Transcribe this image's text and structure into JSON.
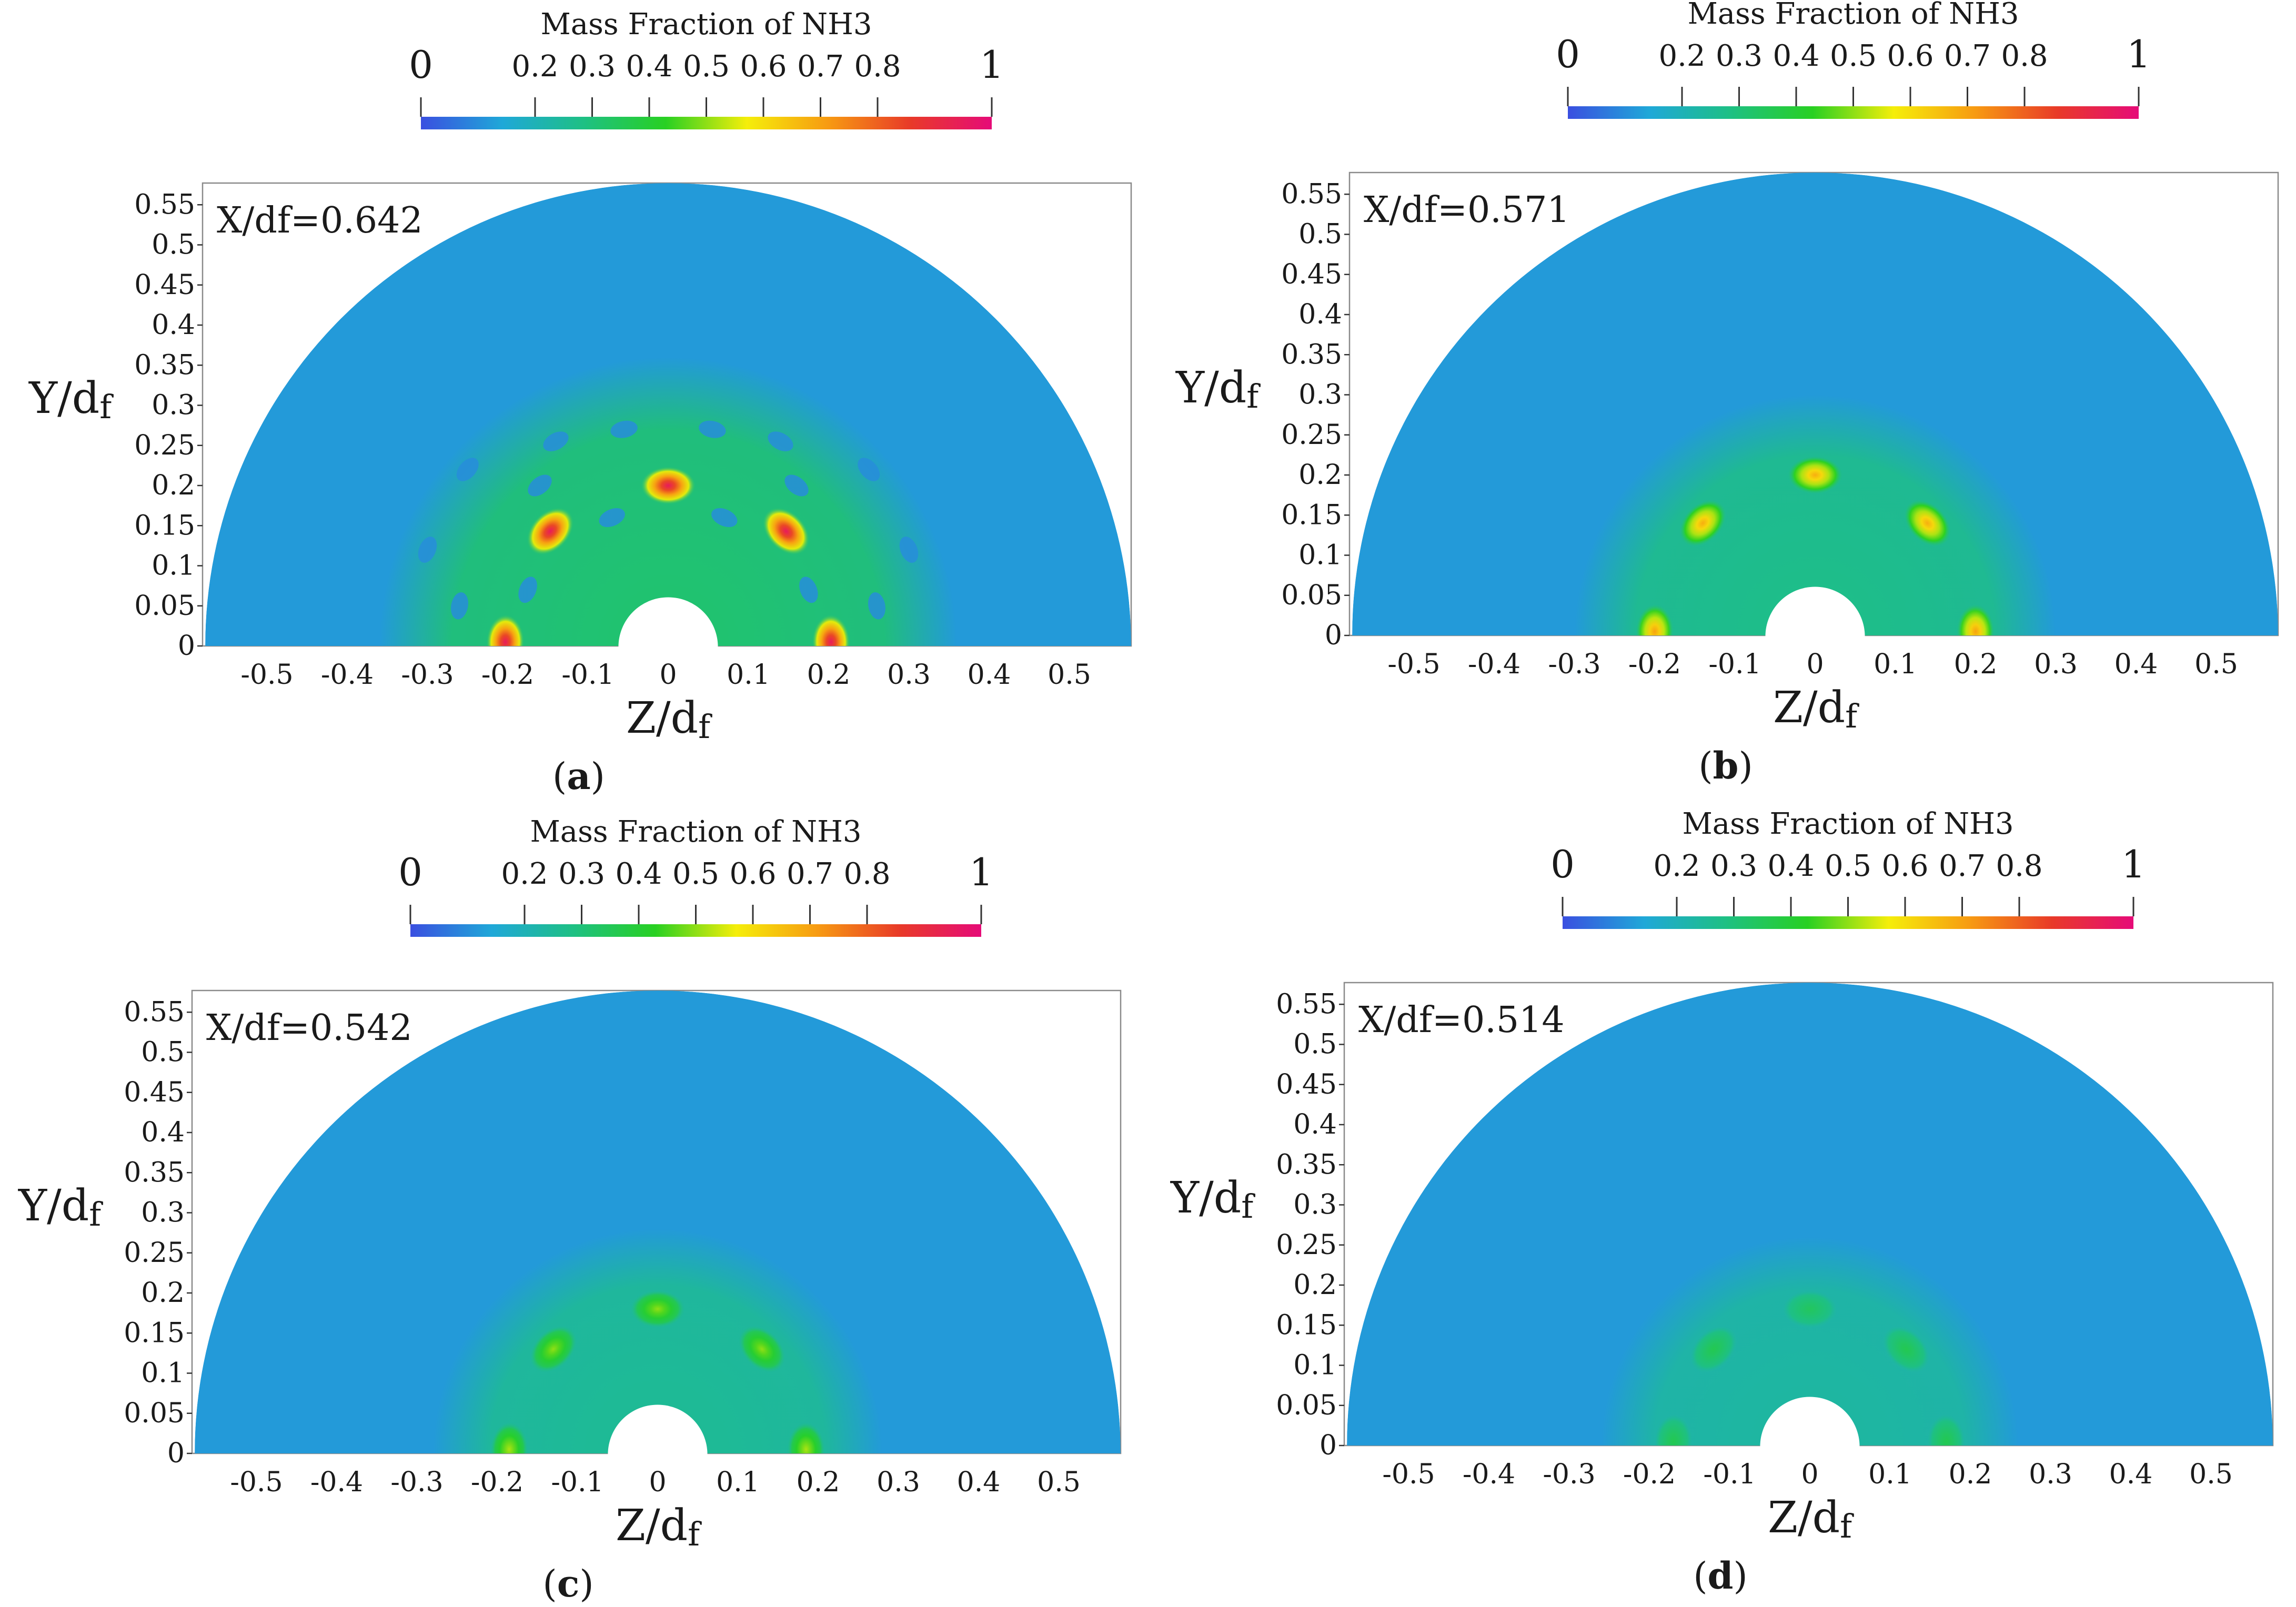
{
  "chart_data": [
    {
      "type": "heatmap",
      "panel": "a",
      "caption_letter": "a",
      "annotation": "X/df=0.642",
      "colorbar": {
        "title": "Mass Fraction of NH3",
        "range": [
          0,
          1
        ],
        "tick_values": [
          0,
          0.2,
          0.3,
          0.4,
          0.5,
          0.6,
          0.7,
          0.8,
          1
        ],
        "tick_labels": [
          "0",
          "0.2",
          "0.3",
          "0.4",
          "0.5",
          "0.6",
          "0.7",
          "0.8",
          "1"
        ],
        "colors": [
          "#3a4fe0",
          "#1fa8d8",
          "#1ec083",
          "#28d022",
          "#f5ee0a",
          "#f79a12",
          "#e83a28",
          "#e60b78"
        ]
      },
      "xlabel": "Z/d",
      "xlabel_sub": "f",
      "ylabel": "Y/d",
      "ylabel_sub": "f",
      "xlim": [
        -0.577,
        0.577
      ],
      "ylim": [
        0,
        0.57
      ],
      "x_ticks": [
        -0.5,
        -0.4,
        -0.3,
        -0.2,
        -0.1,
        0,
        0.1,
        0.2,
        0.3,
        0.4,
        0.5
      ],
      "x_tick_labels": [
        "-0.5",
        "-0.4",
        "-0.3",
        "-0.2",
        "-0.1",
        "0",
        "0.1",
        "0.2",
        "0.3",
        "0.4",
        "0.5"
      ],
      "y_ticks": [
        0,
        0.05,
        0.1,
        0.15,
        0.2,
        0.25,
        0.3,
        0.35,
        0.4,
        0.45,
        0.5,
        0.55
      ],
      "y_tick_labels": [
        "0",
        "0.05",
        "0.1",
        "0.15",
        "0.2",
        "0.25",
        "0.3",
        "0.35",
        "0.4",
        "0.45",
        "0.5",
        "0.55"
      ],
      "domain": {
        "outer_radius": 0.577,
        "inner_radius": 0.062
      },
      "background_value": 0.12,
      "halo": {
        "radius": 0.36,
        "value": 0.32
      },
      "hotspots": [
        {
          "z": -0.203,
          "y": 0.005,
          "value": 0.95
        },
        {
          "z": -0.147,
          "y": 0.143,
          "value": 0.95
        },
        {
          "z": 0.0,
          "y": 0.2,
          "value": 0.95
        },
        {
          "z": 0.147,
          "y": 0.143,
          "value": 0.95
        },
        {
          "z": 0.203,
          "y": 0.005,
          "value": 0.95
        }
      ],
      "low_spots": [
        {
          "z": -0.26,
          "y": 0.05
        },
        {
          "z": -0.175,
          "y": 0.07
        },
        {
          "z": -0.3,
          "y": 0.12
        },
        {
          "z": -0.25,
          "y": 0.22
        },
        {
          "z": -0.14,
          "y": 0.255
        },
        {
          "z": -0.055,
          "y": 0.27
        },
        {
          "z": 0.055,
          "y": 0.27
        },
        {
          "z": 0.14,
          "y": 0.255
        },
        {
          "z": 0.25,
          "y": 0.22
        },
        {
          "z": 0.3,
          "y": 0.12
        },
        {
          "z": 0.175,
          "y": 0.07
        },
        {
          "z": 0.26,
          "y": 0.05
        },
        {
          "z": -0.07,
          "y": 0.16
        },
        {
          "z": 0.07,
          "y": 0.16
        },
        {
          "z": -0.16,
          "y": 0.2
        },
        {
          "z": 0.16,
          "y": 0.2
        }
      ]
    },
    {
      "type": "heatmap",
      "panel": "b",
      "caption_letter": "b",
      "annotation": "X/df=0.571",
      "colorbar": {
        "title": "Mass Fraction of NH3",
        "range": [
          0,
          1
        ],
        "tick_values": [
          0,
          0.2,
          0.3,
          0.4,
          0.5,
          0.6,
          0.7,
          0.8,
          1
        ],
        "tick_labels": [
          "0",
          "0.2",
          "0.3",
          "0.4",
          "0.5",
          "0.6",
          "0.7",
          "0.8",
          "1"
        ],
        "colors": [
          "#3a4fe0",
          "#1fa8d8",
          "#1ec083",
          "#28d022",
          "#f5ee0a",
          "#f79a12",
          "#e83a28",
          "#e60b78"
        ]
      },
      "xlabel": "Z/d",
      "xlabel_sub": "f",
      "ylabel": "Y/d",
      "ylabel_sub": "f",
      "xlim": [
        -0.577,
        0.577
      ],
      "ylim": [
        0,
        0.57
      ],
      "x_ticks": [
        -0.5,
        -0.4,
        -0.3,
        -0.2,
        -0.1,
        0,
        0.1,
        0.2,
        0.3,
        0.4,
        0.5
      ],
      "x_tick_labels": [
        "-0.5",
        "-0.4",
        "-0.3",
        "-0.2",
        "-0.1",
        "0",
        "0.1",
        "0.2",
        "0.3",
        "0.4",
        "0.5"
      ],
      "y_ticks": [
        0,
        0.05,
        0.1,
        0.15,
        0.2,
        0.25,
        0.3,
        0.35,
        0.4,
        0.45,
        0.5,
        0.55
      ],
      "y_tick_labels": [
        "0",
        "0.05",
        "0.1",
        "0.15",
        "0.2",
        "0.25",
        "0.3",
        "0.35",
        "0.4",
        "0.45",
        "0.5",
        "0.55"
      ],
      "domain": {
        "outer_radius": 0.577,
        "inner_radius": 0.062
      },
      "background_value": 0.12,
      "halo": {
        "radius": 0.3,
        "value": 0.28
      },
      "hotspots": [
        {
          "z": -0.2,
          "y": 0.005,
          "value": 0.7
        },
        {
          "z": -0.14,
          "y": 0.14,
          "value": 0.68
        },
        {
          "z": 0.0,
          "y": 0.2,
          "value": 0.68
        },
        {
          "z": 0.14,
          "y": 0.14,
          "value": 0.68
        },
        {
          "z": 0.2,
          "y": 0.005,
          "value": 0.7
        }
      ],
      "low_spots": []
    },
    {
      "type": "heatmap",
      "panel": "c",
      "caption_letter": "c",
      "annotation": "X/df=0.542",
      "colorbar": {
        "title": "Mass Fraction of NH3",
        "range": [
          0,
          1
        ],
        "tick_values": [
          0,
          0.2,
          0.3,
          0.4,
          0.5,
          0.6,
          0.7,
          0.8,
          1
        ],
        "tick_labels": [
          "0",
          "0.2",
          "0.3",
          "0.4",
          "0.5",
          "0.6",
          "0.7",
          "0.8",
          "1"
        ],
        "colors": [
          "#3a4fe0",
          "#1fa8d8",
          "#1ec083",
          "#28d022",
          "#f5ee0a",
          "#f79a12",
          "#e83a28",
          "#e60b78"
        ]
      },
      "xlabel": "Z/d",
      "xlabel_sub": "f",
      "ylabel": "Y/d",
      "ylabel_sub": "f",
      "xlim": [
        -0.577,
        0.577
      ],
      "ylim": [
        0,
        0.57
      ],
      "x_ticks": [
        -0.5,
        -0.4,
        -0.3,
        -0.2,
        -0.1,
        0,
        0.1,
        0.2,
        0.3,
        0.4,
        0.5
      ],
      "x_tick_labels": [
        "-0.5",
        "-0.4",
        "-0.3",
        "-0.2",
        "-0.1",
        "0",
        "0.1",
        "0.2",
        "0.3",
        "0.4",
        "0.5"
      ],
      "y_ticks": [
        0,
        0.05,
        0.1,
        0.15,
        0.2,
        0.25,
        0.3,
        0.35,
        0.4,
        0.45,
        0.5,
        0.55
      ],
      "y_tick_labels": [
        "0",
        "0.05",
        "0.1",
        "0.15",
        "0.2",
        "0.25",
        "0.3",
        "0.35",
        "0.4",
        "0.45",
        "0.5",
        "0.55"
      ],
      "domain": {
        "outer_radius": 0.577,
        "inner_radius": 0.062
      },
      "background_value": 0.12,
      "halo": {
        "radius": 0.28,
        "value": 0.26
      },
      "hotspots": [
        {
          "z": -0.185,
          "y": 0.005,
          "value": 0.52
        },
        {
          "z": -0.13,
          "y": 0.13,
          "value": 0.5
        },
        {
          "z": 0.0,
          "y": 0.18,
          "value": 0.5
        },
        {
          "z": 0.13,
          "y": 0.13,
          "value": 0.5
        },
        {
          "z": 0.185,
          "y": 0.005,
          "value": 0.52
        }
      ],
      "low_spots": []
    },
    {
      "type": "heatmap",
      "panel": "d",
      "caption_letter": "d",
      "annotation": "X/df=0.514",
      "colorbar": {
        "title": "Mass Fraction of NH3",
        "range": [
          0,
          1
        ],
        "tick_values": [
          0,
          0.2,
          0.3,
          0.4,
          0.5,
          0.6,
          0.7,
          0.8,
          1
        ],
        "tick_labels": [
          "0",
          "0.2",
          "0.3",
          "0.4",
          "0.5",
          "0.6",
          "0.7",
          "0.8",
          "1"
        ],
        "colors": [
          "#3a4fe0",
          "#1fa8d8",
          "#1ec083",
          "#28d022",
          "#f5ee0a",
          "#f79a12",
          "#e83a28",
          "#e60b78"
        ]
      },
      "xlabel": "Z/d",
      "xlabel_sub": "f",
      "ylabel": "Y/d",
      "ylabel_sub": "f",
      "xlim": [
        -0.577,
        0.577
      ],
      "ylim": [
        0,
        0.57
      ],
      "x_ticks": [
        -0.5,
        -0.4,
        -0.3,
        -0.2,
        -0.1,
        0,
        0.1,
        0.2,
        0.3,
        0.4,
        0.5
      ],
      "x_tick_labels": [
        "-0.5",
        "-0.4",
        "-0.3",
        "-0.2",
        "-0.1",
        "0",
        "0.1",
        "0.2",
        "0.3",
        "0.4",
        "0.5"
      ],
      "y_ticks": [
        0,
        0.05,
        0.1,
        0.15,
        0.2,
        0.25,
        0.3,
        0.35,
        0.4,
        0.45,
        0.5,
        0.55
      ],
      "y_tick_labels": [
        "0",
        "0.05",
        "0.1",
        "0.15",
        "0.2",
        "0.25",
        "0.3",
        "0.35",
        "0.4",
        "0.45",
        "0.5",
        "0.55"
      ],
      "domain": {
        "outer_radius": 0.577,
        "inner_radius": 0.062
      },
      "background_value": 0.12,
      "halo": {
        "radius": 0.26,
        "value": 0.24
      },
      "hotspots": [
        {
          "z": -0.17,
          "y": 0.005,
          "value": 0.36
        },
        {
          "z": -0.12,
          "y": 0.12,
          "value": 0.36
        },
        {
          "z": 0.0,
          "y": 0.17,
          "value": 0.34
        },
        {
          "z": 0.12,
          "y": 0.12,
          "value": 0.36
        },
        {
          "z": 0.17,
          "y": 0.005,
          "value": 0.36
        }
      ],
      "low_spots": []
    }
  ]
}
